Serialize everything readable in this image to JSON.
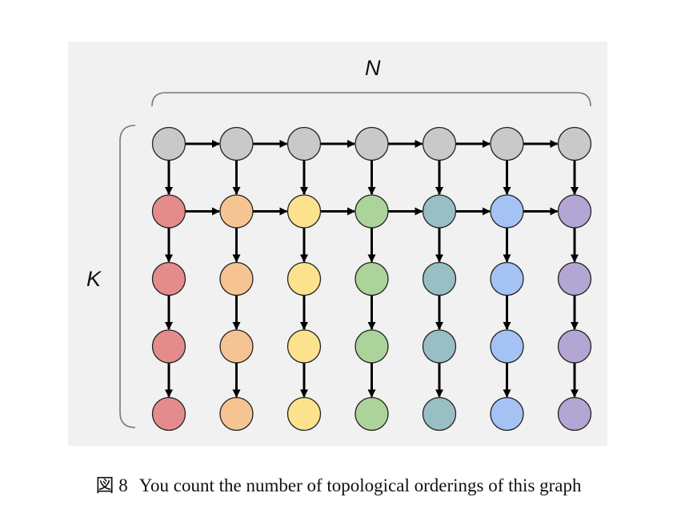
{
  "labels": {
    "columns": "N",
    "rows": "K"
  },
  "caption": {
    "number": "図 8",
    "text": "You count the number of topological orderings of this graph"
  },
  "grid": {
    "rows": 5,
    "columns": 7
  },
  "colors": {
    "top_row": "#c9c9c9",
    "columns": [
      "#e48c8c",
      "#f6c492",
      "#fde28e",
      "#abd39a",
      "#98bfc3",
      "#a4c2f4",
      "#b3a6d4"
    ],
    "outline": "#222222",
    "arrow": "#000000",
    "bracket": "#777777",
    "background": "#f1f1f1"
  },
  "edges": {
    "horizontal_rows": [
      0,
      1
    ],
    "vertical": "every column, each row to the next"
  }
}
